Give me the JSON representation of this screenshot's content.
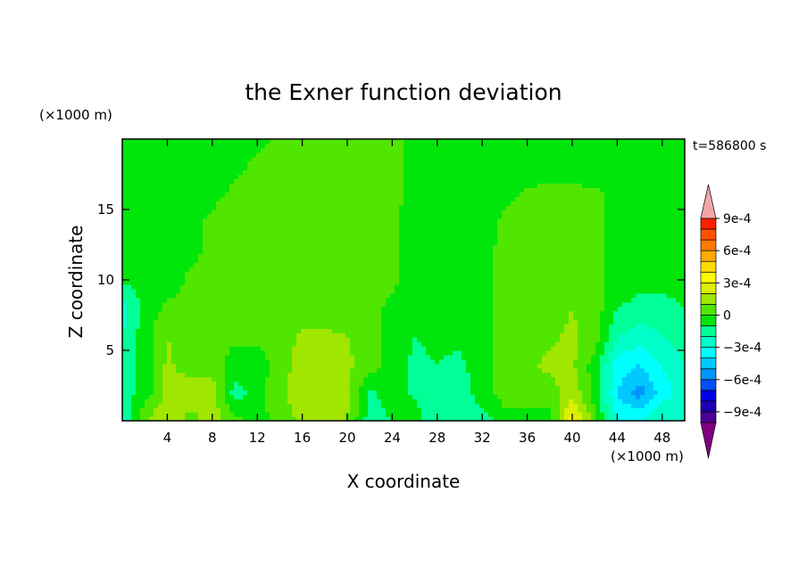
{
  "chart_data": {
    "type": "heatmap",
    "title": "the Exner function deviation",
    "xlabel": "X coordinate",
    "ylabel": "Z coordinate",
    "x_unit": "(×1000 m)",
    "y_unit": "(×1000 m)",
    "time_label": "t=586800 s",
    "xlim": [
      0,
      50
    ],
    "ylim": [
      0,
      20
    ],
    "x_ticks": [
      4,
      8,
      12,
      16,
      20,
      24,
      28,
      32,
      36,
      40,
      44,
      48
    ],
    "y_ticks": [
      5,
      10,
      15
    ],
    "grid": false,
    "colorbar": {
      "levels": [
        -0.0011,
        -0.001,
        -0.0009,
        -0.0008,
        -0.0007,
        -0.0006,
        -0.0005,
        -0.0004,
        -0.0003,
        -0.0002,
        -0.0001,
        0,
        0.0001,
        0.0002,
        0.0003,
        0.0004,
        0.0005,
        0.0006,
        0.0007,
        0.0008,
        0.0009,
        0.001
      ],
      "tick_values": [
        0.0009,
        0.0006,
        0.0003,
        0,
        -0.0003,
        -0.0006,
        -0.0009
      ],
      "tick_labels": [
        "9e-4",
        "6e-4",
        "3e-4",
        "0",
        "−3e-4",
        "−6e-4",
        "−9e-4"
      ],
      "colors": [
        "#800080",
        "#4b0096",
        "#1e00b4",
        "#0000e6",
        "#0050ff",
        "#0096ff",
        "#00c8ff",
        "#00ffff",
        "#00ffc8",
        "#00ff96",
        "#00e60a",
        "#50e600",
        "#a0e600",
        "#dcf000",
        "#ffff00",
        "#ffdc00",
        "#ffaa00",
        "#ff7800",
        "#ff5000",
        "#ff1e00",
        "#f4a6a6"
      ],
      "under_color": "#800080",
      "over_color": "#f4a6a6"
    },
    "field": {
      "nx": 26,
      "nz": 11,
      "x_values": [
        0,
        2,
        4,
        6,
        8,
        10,
        12,
        14,
        16,
        18,
        20,
        22,
        24,
        26,
        28,
        30,
        32,
        34,
        36,
        38,
        40,
        42,
        44,
        46,
        48,
        50
      ],
      "z_values": [
        0,
        2,
        4,
        6,
        8,
        10,
        12,
        14,
        16,
        18,
        20
      ],
      "values": [
        [
          -0.00025,
          0.0001,
          0.0002,
          5e-05,
          0.00015,
          5e-05,
          -5e-05,
          5e-05,
          0.00012,
          0.00012,
          0.0001,
          -0.00015,
          -0.0001,
          -5e-05,
          -0.0002,
          -0.0002,
          -0.00015,
          -5e-05,
          -0.0001,
          -5e-05,
          0.00035,
          5e-05,
          -0.0003,
          -0.0003,
          -0.0002,
          -0.00025
        ],
        [
          -0.00015,
          -5e-05,
          0.00012,
          0.00018,
          0.00015,
          -0.00015,
          -5e-05,
          8e-05,
          0.00015,
          0.00018,
          0.00012,
          -0.00012,
          -5e-05,
          -0.00012,
          -0.00012,
          -0.00015,
          -5e-05,
          5e-05,
          0.0001,
          5e-05,
          0.00018,
          -5e-05,
          -0.0004,
          -0.00055,
          -0.00035,
          -0.00025
        ],
        [
          -0.00015,
          -5e-05,
          0.00012,
          5e-05,
          5e-05,
          -5e-05,
          -5e-05,
          5e-05,
          0.00015,
          0.00018,
          0.00012,
          5e-05,
          -5e-05,
          -0.00012,
          -0.0001,
          -0.00012,
          -5e-05,
          5e-05,
          8e-05,
          0.00012,
          0.00012,
          -5e-05,
          -0.00035,
          -0.0004,
          -0.0003,
          -0.0002
        ],
        [
          -0.0002,
          -5e-05,
          0.0001,
          5e-05,
          5e-05,
          2e-05,
          2e-05,
          5e-05,
          0.00012,
          0.00012,
          0.0001,
          5e-05,
          -5e-05,
          -0.0001,
          -8e-05,
          -8e-05,
          -2e-05,
          2e-05,
          5e-05,
          8e-05,
          0.00012,
          5e-05,
          -0.0002,
          -0.00025,
          -0.0002,
          -0.00015
        ],
        [
          -0.00025,
          -5e-05,
          2e-05,
          2e-05,
          2e-05,
          5e-05,
          2e-05,
          5e-05,
          5e-05,
          5e-05,
          5e-05,
          2e-05,
          -2e-05,
          -8e-05,
          -8e-05,
          -5e-05,
          -2e-05,
          2e-05,
          5e-05,
          5e-05,
          0.0001,
          5e-05,
          -0.0001,
          -0.00015,
          -0.00015,
          -0.0001
        ],
        [
          -8e-05,
          -8e-05,
          -5e-05,
          2e-05,
          2e-05,
          5e-05,
          5e-05,
          5e-05,
          5e-05,
          5e-05,
          5e-05,
          5e-05,
          2e-05,
          -5e-05,
          -8e-05,
          -5e-05,
          -2e-05,
          2e-05,
          5e-05,
          5e-05,
          5e-05,
          2e-05,
          -2e-05,
          -5e-05,
          -5e-05,
          -5e-05
        ],
        [
          -5e-05,
          -5e-05,
          -5e-05,
          -2e-05,
          2e-05,
          5e-05,
          5e-05,
          5e-05,
          5e-05,
          5e-05,
          5e-05,
          5e-05,
          2e-05,
          -5e-05,
          -8e-05,
          -5e-05,
          -2e-05,
          2e-05,
          5e-05,
          5e-05,
          5e-05,
          2e-05,
          -2e-05,
          -5e-05,
          -5e-05,
          -5e-05
        ],
        [
          -5e-05,
          -5e-05,
          -5e-05,
          -2e-05,
          2e-05,
          5e-05,
          5e-05,
          5e-05,
          5e-05,
          5e-05,
          5e-05,
          5e-05,
          2e-05,
          -5e-05,
          -8e-05,
          -5e-05,
          -5e-05,
          2e-05,
          5e-05,
          5e-05,
          5e-05,
          2e-05,
          -2e-05,
          -5e-05,
          -5e-05,
          -5e-05
        ],
        [
          -5e-05,
          -5e-05,
          -5e-05,
          -5e-05,
          -2e-05,
          2e-05,
          2e-05,
          5e-05,
          5e-05,
          5e-05,
          5e-05,
          5e-05,
          2e-05,
          -2e-05,
          -5e-05,
          -5e-05,
          -5e-05,
          -2e-05,
          2e-05,
          2e-05,
          2e-05,
          2e-05,
          -2e-05,
          -5e-05,
          -5e-05,
          -5e-05
        ],
        [
          -5e-05,
          -5e-05,
          -5e-05,
          -5e-05,
          -5e-05,
          -2e-05,
          2e-05,
          2e-05,
          2e-05,
          2e-05,
          2e-05,
          2e-05,
          2e-05,
          -2e-05,
          -5e-05,
          -5e-05,
          -5e-05,
          -5e-05,
          -5e-05,
          -2e-05,
          -2e-05,
          -5e-05,
          -5e-05,
          -5e-05,
          -5e-05,
          -5e-05
        ],
        [
          -5e-05,
          -5e-05,
          -5e-05,
          -5e-05,
          -5e-05,
          -5e-05,
          -2e-05,
          2e-05,
          2e-05,
          2e-05,
          2e-05,
          2e-05,
          2e-05,
          -2e-05,
          -5e-05,
          -5e-05,
          -5e-05,
          -5e-05,
          -5e-05,
          -5e-05,
          -5e-05,
          -5e-05,
          -5e-05,
          -5e-05,
          -5e-05,
          -5e-05
        ]
      ]
    }
  }
}
